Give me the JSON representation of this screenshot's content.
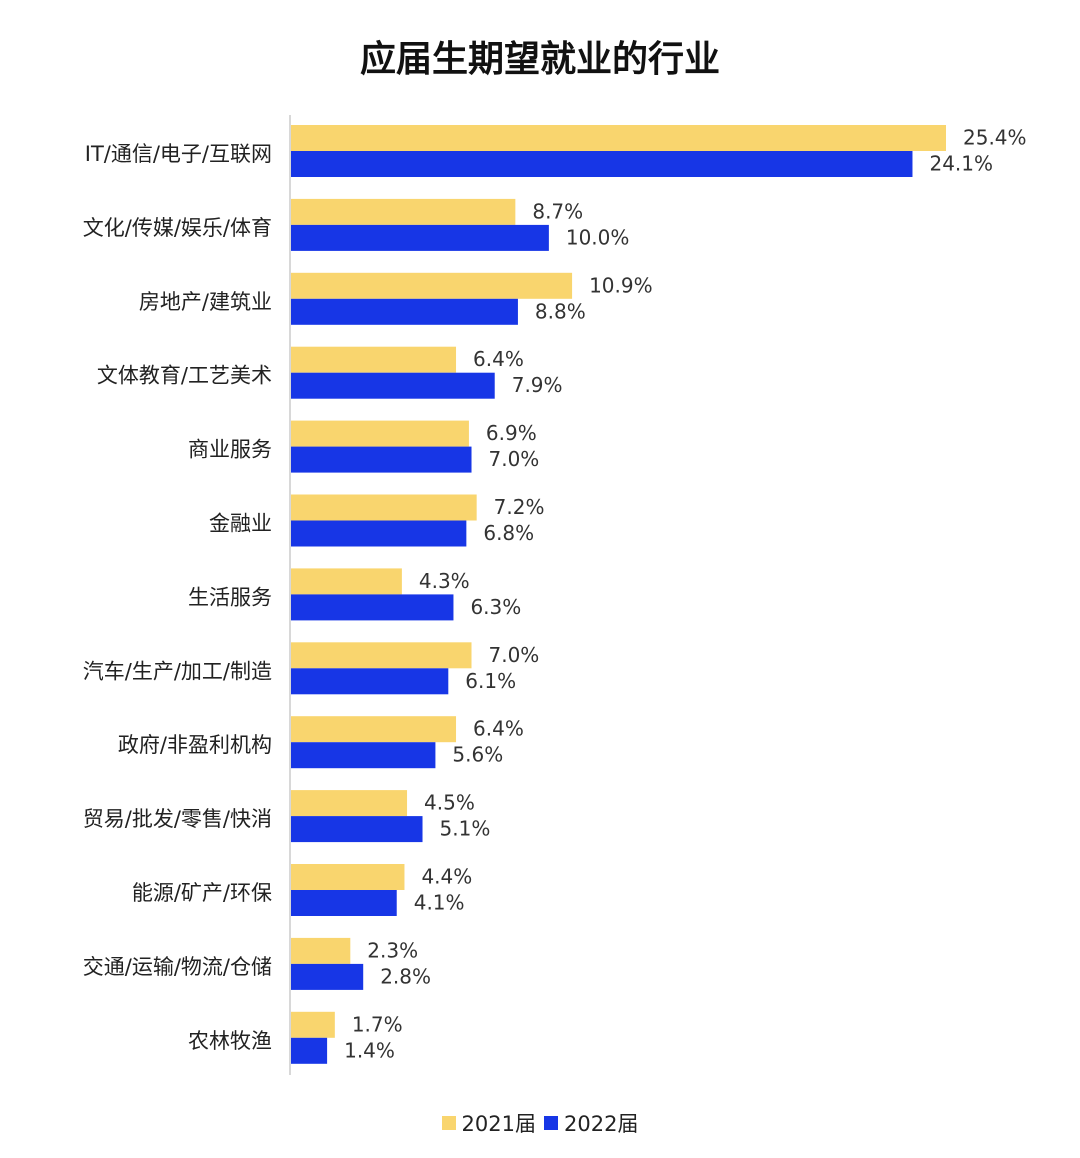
{
  "chart_data": {
    "type": "bar",
    "orientation": "horizontal",
    "title": "应届生期望就业的行业",
    "categories": [
      "IT/通信/电子/互联网",
      "文化/传媒/娱乐/体育",
      "房地产/建筑业",
      "文体教育/工艺美术",
      "商业服务",
      "金融业",
      "生活服务",
      "汽车/生产/加工/制造",
      "政府/非盈利机构",
      "贸易/批发/零售/快消",
      "能源/矿产/环保",
      "交通/运输/物流/仓储",
      "农林牧渔"
    ],
    "series": [
      {
        "name": "2021届",
        "color": "#F9D56E",
        "values": [
          25.4,
          8.7,
          10.9,
          6.4,
          6.9,
          7.2,
          4.3,
          7.0,
          6.4,
          4.5,
          4.4,
          2.3,
          1.7
        ],
        "labels": [
          "25.4%",
          "8.7%",
          "10.9%",
          "6.4%",
          "6.9%",
          "7.2%",
          "4.3%",
          "7.0%",
          "6.4%",
          "4.5%",
          "4.4%",
          "2.3%",
          "1.7%"
        ]
      },
      {
        "name": "2022届",
        "color": "#1736E6",
        "values": [
          24.1,
          10.0,
          8.8,
          7.9,
          7.0,
          6.8,
          6.3,
          6.1,
          5.6,
          5.1,
          4.1,
          2.8,
          1.4
        ],
        "labels": [
          "24.1%",
          "10.0%",
          "8.8%",
          "7.9%",
          "7.0%",
          "6.8%",
          "6.3%",
          "6.1%",
          "5.6%",
          "5.1%",
          "4.1%",
          "2.8%",
          "1.4%"
        ]
      }
    ],
    "xlim": [
      0,
      25.4
    ],
    "grid": false,
    "legend_position": "bottom",
    "axis_color": "#CCCCCC"
  }
}
